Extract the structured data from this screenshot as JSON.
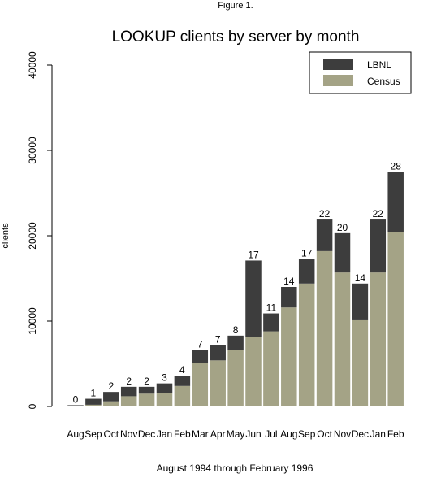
{
  "figure_label": "Figure 1.",
  "colors": {
    "lbnl": "#3d3d3d",
    "census": "#a4a386",
    "axis": "#000000",
    "background": "#ffffff"
  },
  "chart_data": {
    "type": "bar",
    "stacked": true,
    "title": "LOOKUP clients by server by month",
    "subtitle": "",
    "xlabel": "August 1994 through February 1996",
    "ylabel": "clients",
    "ylim": [
      0,
      40000
    ],
    "yticks": [
      0,
      10000,
      20000,
      30000,
      40000
    ],
    "grid": false,
    "legend_position": "top-right",
    "categories": [
      "Aug",
      "Sep",
      "Oct",
      "Nov",
      "Dec",
      "Jan",
      "Feb",
      "Mar",
      "Apr",
      "May",
      "Jun",
      "Jul",
      "Aug",
      "Sep",
      "Oct",
      "Nov",
      "Dec",
      "Jan",
      "Feb"
    ],
    "series": [
      {
        "name": "Census",
        "color": "#a4a386",
        "values": [
          0,
          200,
          600,
          1200,
          1500,
          1600,
          2400,
          5100,
          5400,
          6600,
          8100,
          8800,
          11600,
          14400,
          18200,
          15700,
          10100,
          15700,
          20400
        ]
      },
      {
        "name": "LBNL",
        "color": "#3d3d3d",
        "values": [
          150,
          700,
          1100,
          1100,
          800,
          1100,
          1200,
          1500,
          1800,
          1700,
          9000,
          2100,
          2400,
          2900,
          3700,
          4600,
          4300,
          6200,
          7100
        ]
      }
    ],
    "data_labels": [
      "0",
      "1",
      "2",
      "2",
      "2",
      "3",
      "4",
      "7",
      "7",
      "8",
      "17",
      "11",
      "14",
      "17",
      "22",
      "20",
      "14",
      "22",
      "28"
    ]
  }
}
